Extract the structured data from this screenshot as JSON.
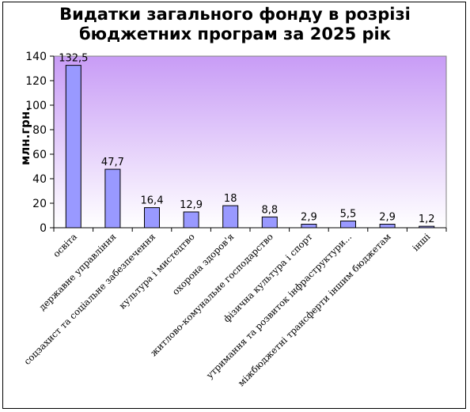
{
  "chart_data": {
    "type": "bar",
    "title": [
      "Видатки загального фонду в розрізі",
      "бюджетних програм за 2025 рік"
    ],
    "ylabel": "млн.грн.",
    "xlabel": "",
    "ylim": [
      0,
      140
    ],
    "yticks": [
      0,
      20,
      40,
      60,
      80,
      100,
      120,
      140
    ],
    "categories": [
      "освіта",
      "державне управління",
      "соцзахист та соціальне забезпечення",
      "культура і мистецтво",
      "охорона здоров'я",
      "житлово-комунальне господарство",
      "фізична культура і спорт",
      "утримання та розвиток інфраструктури...",
      "міжбюджетні трансферти іншим бюджетам",
      "інші"
    ],
    "values": [
      132.5,
      47.7,
      16.4,
      12.9,
      18,
      8.8,
      2.9,
      5.5,
      2.9,
      1.2
    ],
    "data_labels": [
      "132,5",
      "47,7",
      "16,4",
      "12,9",
      "18",
      "8,8",
      "2,9",
      "5,5",
      "2,9",
      "1,2"
    ],
    "grid": false,
    "legend": "none",
    "colors": {
      "bar_fill": "#9999ff",
      "bar_stroke": "#000000",
      "plot_gradient_top": "#c89cf6",
      "plot_gradient_bottom": "#ffffff"
    }
  }
}
